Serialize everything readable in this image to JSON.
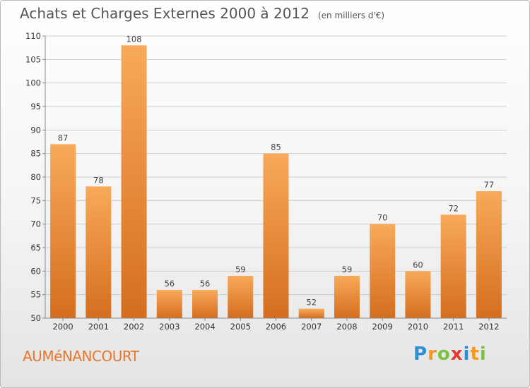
{
  "header": {
    "title": "Achats et Charges Externes 2000 à 2012",
    "unit": "(en milliers d'€)"
  },
  "footer": {
    "commune": "AUMéNANCOURT",
    "brand_letters": [
      {
        "char": "P",
        "color": "#2a8fd6"
      },
      {
        "char": "r",
        "color": "#f39a1e"
      },
      {
        "char": "o",
        "color": "#7cc242"
      },
      {
        "char": "x",
        "color": "#e63a2e"
      },
      {
        "char": "i",
        "color": "#2a8fd6"
      },
      {
        "char": "t",
        "color": "#f39a1e"
      },
      {
        "char": "i",
        "color": "#7cc242"
      }
    ]
  },
  "colors": {
    "bar_light": "#f8a95a",
    "bar_dark": "#d46e1e",
    "grid": "#cccccc",
    "axis": "#888888"
  },
  "chart_data": {
    "type": "bar",
    "categories": [
      "2000",
      "2001",
      "2002",
      "2003",
      "2004",
      "2005",
      "2006",
      "2007",
      "2008",
      "2009",
      "2010",
      "2011",
      "2012"
    ],
    "values": [
      87,
      78,
      108,
      56,
      56,
      59,
      85,
      52,
      59,
      70,
      60,
      72,
      77
    ],
    "data_labels": [
      "87",
      "78",
      "108",
      "56",
      "56",
      "59",
      "85",
      "52",
      "59",
      "70",
      "60",
      "72",
      "77"
    ],
    "title": "Achats et Charges Externes 2000 à 2012",
    "ylim": [
      50,
      110
    ],
    "yticks": [
      50,
      55,
      60,
      65,
      70,
      75,
      80,
      85,
      90,
      95,
      100,
      105,
      110
    ],
    "ytick_labels": [
      "50",
      "55",
      "60",
      "65",
      "70",
      "75",
      "80",
      "85",
      "90",
      "95",
      "100",
      "105",
      "110"
    ],
    "grid": true
  }
}
